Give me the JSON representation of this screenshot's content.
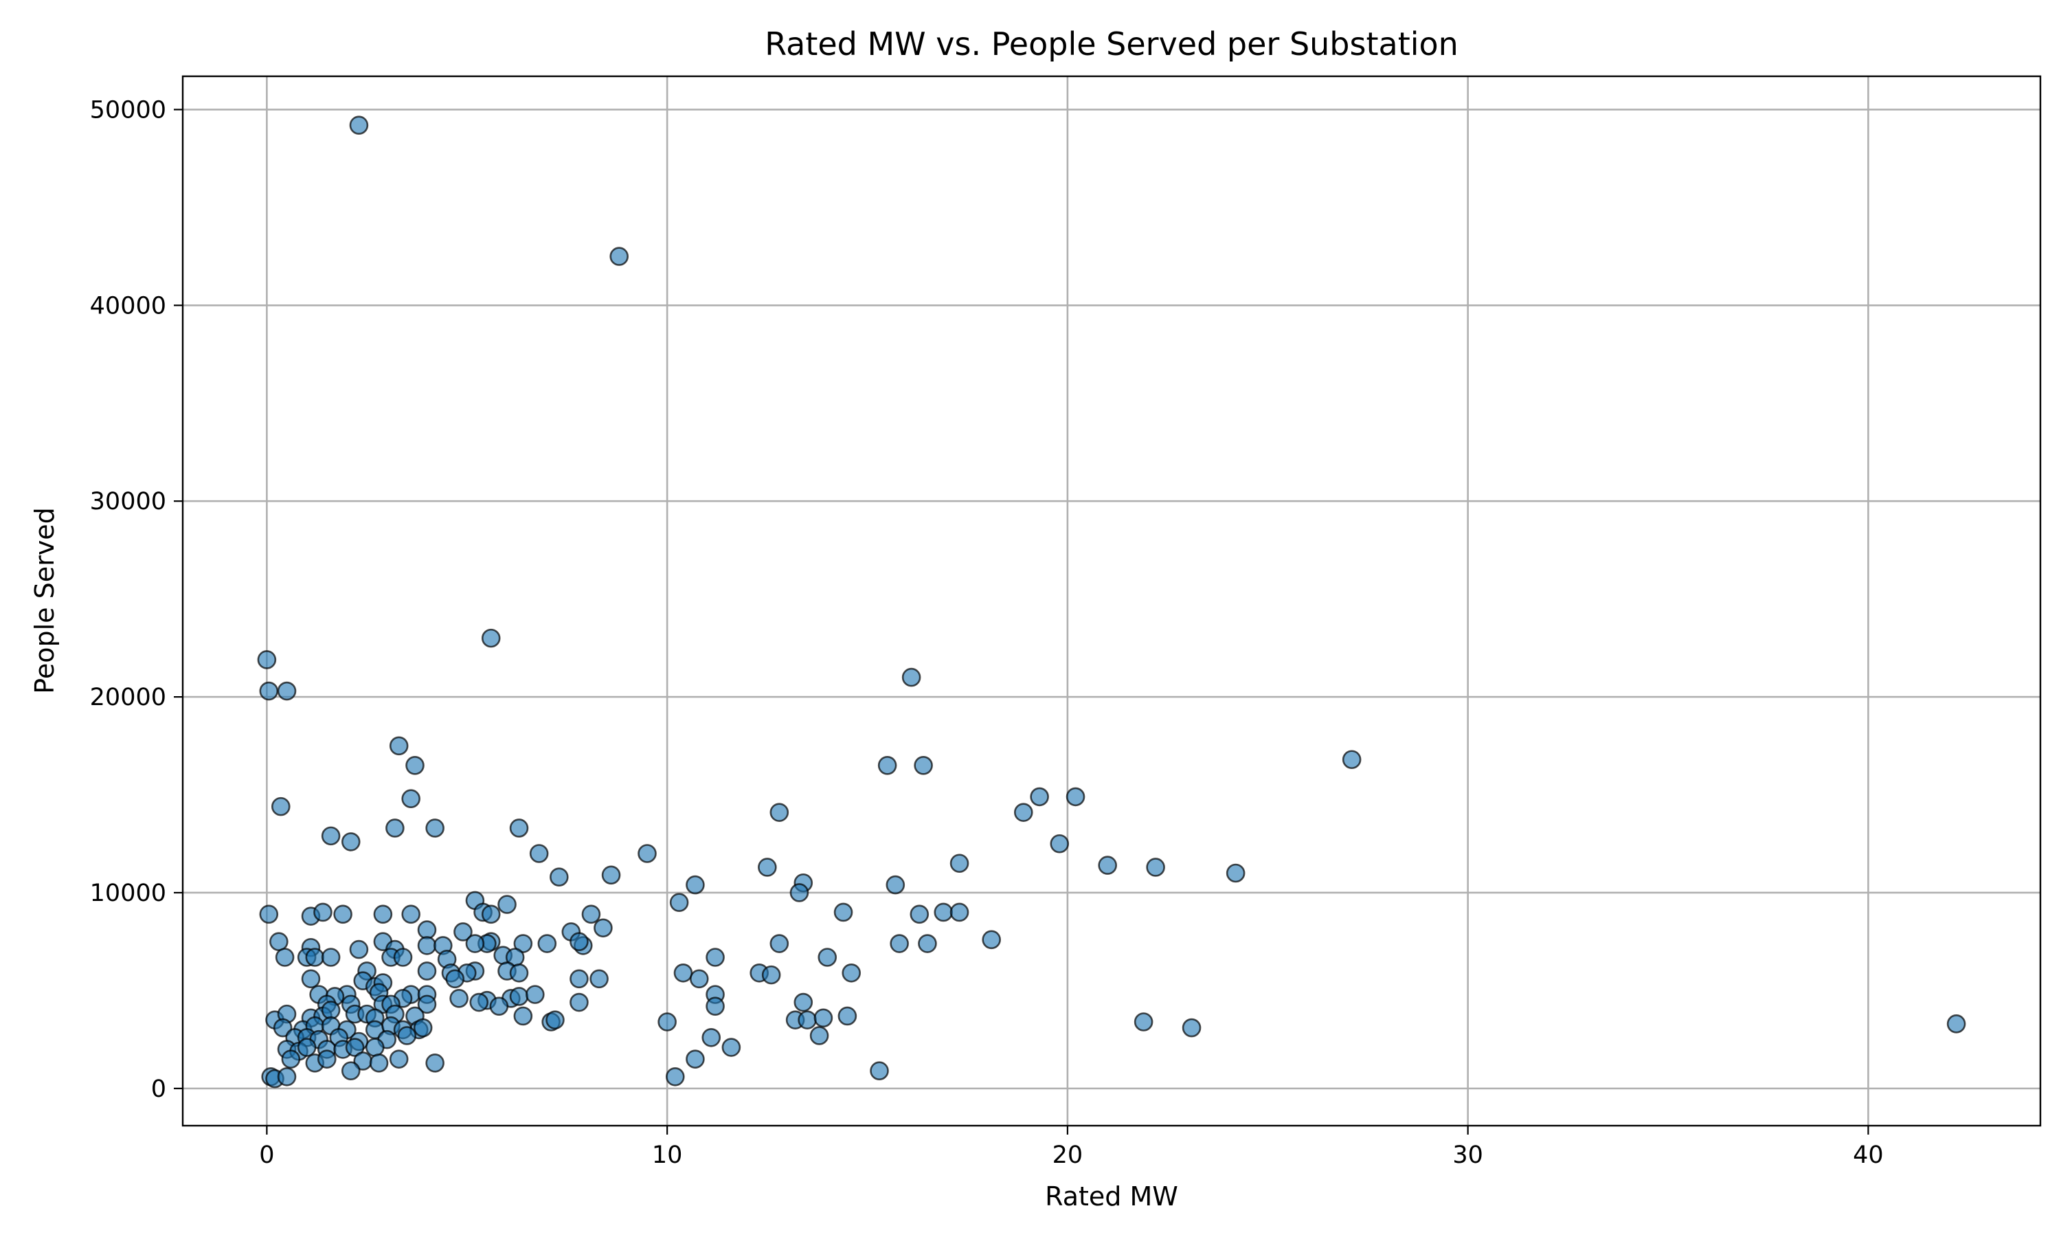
{
  "chart_data": {
    "type": "scatter",
    "title": "Rated MW vs. People Served per Substation",
    "xlabel": "Rated MW",
    "ylabel": "People Served",
    "xlim": [
      -2.1,
      44.3
    ],
    "ylim": [
      -1900,
      51700
    ],
    "xticks": [
      0,
      10,
      20,
      30,
      40
    ],
    "yticks": [
      0,
      10000,
      20000,
      30000,
      40000,
      50000
    ],
    "xtick_labels": [
      "0",
      "10",
      "20",
      "30",
      "40"
    ],
    "ytick_labels": [
      "0",
      "10000",
      "20000",
      "30000",
      "40000",
      "50000"
    ],
    "grid": true,
    "marker_color": "#1f77b4",
    "points": [
      [
        2.3,
        49200
      ],
      [
        8.8,
        42500
      ],
      [
        5.6,
        23000
      ],
      [
        0.0,
        21900
      ],
      [
        0.05,
        20300
      ],
      [
        0.5,
        20300
      ],
      [
        16.1,
        21000
      ],
      [
        27.1,
        16800
      ],
      [
        3.3,
        17500
      ],
      [
        3.7,
        16500
      ],
      [
        15.5,
        16500
      ],
      [
        16.4,
        16500
      ],
      [
        3.6,
        14800
      ],
      [
        0.35,
        14400
      ],
      [
        12.8,
        14100
      ],
      [
        18.9,
        14100
      ],
      [
        19.3,
        14900
      ],
      [
        20.2,
        14900
      ],
      [
        1.6,
        12900
      ],
      [
        2.1,
        12600
      ],
      [
        3.2,
        13300
      ],
      [
        4.2,
        13300
      ],
      [
        6.3,
        13300
      ],
      [
        19.8,
        12500
      ],
      [
        6.8,
        12000
      ],
      [
        9.5,
        12000
      ],
      [
        7.3,
        10800
      ],
      [
        8.6,
        10900
      ],
      [
        10.7,
        10400
      ],
      [
        13.4,
        10500
      ],
      [
        15.7,
        10400
      ],
      [
        12.5,
        11300
      ],
      [
        17.3,
        11500
      ],
      [
        21.0,
        11400
      ],
      [
        22.2,
        11300
      ],
      [
        24.2,
        11000
      ],
      [
        10.3,
        9500
      ],
      [
        13.3,
        10000
      ],
      [
        14.4,
        9000
      ],
      [
        16.9,
        9000
      ],
      [
        17.3,
        9000
      ],
      [
        16.3,
        8900
      ],
      [
        5.2,
        9600
      ],
      [
        6.0,
        9400
      ],
      [
        5.4,
        9000
      ],
      [
        5.6,
        8900
      ],
      [
        0.05,
        8900
      ],
      [
        1.1,
        8800
      ],
      [
        1.4,
        9000
      ],
      [
        1.9,
        8900
      ],
      [
        2.9,
        8900
      ],
      [
        3.6,
        8900
      ],
      [
        8.1,
        8900
      ],
      [
        7.6,
        8000
      ],
      [
        8.4,
        8200
      ],
      [
        4.0,
        8100
      ],
      [
        4.9,
        8000
      ],
      [
        5.6,
        7500
      ],
      [
        5.5,
        7400
      ],
      [
        5.2,
        7400
      ],
      [
        0.3,
        7500
      ],
      [
        1.1,
        7200
      ],
      [
        2.3,
        7100
      ],
      [
        2.9,
        7500
      ],
      [
        3.2,
        7100
      ],
      [
        4.0,
        7300
      ],
      [
        4.4,
        7300
      ],
      [
        6.4,
        7400
      ],
      [
        7.0,
        7400
      ],
      [
        7.9,
        7300
      ],
      [
        7.8,
        7500
      ],
      [
        12.8,
        7400
      ],
      [
        15.8,
        7400
      ],
      [
        16.5,
        7400
      ],
      [
        18.1,
        7600
      ],
      [
        0.45,
        6700
      ],
      [
        1.0,
        6700
      ],
      [
        1.2,
        6700
      ],
      [
        1.6,
        6700
      ],
      [
        3.1,
        6700
      ],
      [
        3.4,
        6700
      ],
      [
        4.5,
        6600
      ],
      [
        5.9,
        6800
      ],
      [
        6.2,
        6700
      ],
      [
        11.2,
        6700
      ],
      [
        14.0,
        6700
      ],
      [
        2.5,
        6000
      ],
      [
        4.0,
        6000
      ],
      [
        4.6,
        5900
      ],
      [
        5.2,
        6000
      ],
      [
        5.0,
        5900
      ],
      [
        6.0,
        6000
      ],
      [
        6.3,
        5900
      ],
      [
        10.4,
        5900
      ],
      [
        12.3,
        5900
      ],
      [
        12.6,
        5800
      ],
      [
        14.6,
        5900
      ],
      [
        1.1,
        5600
      ],
      [
        2.4,
        5500
      ],
      [
        2.7,
        5200
      ],
      [
        2.9,
        5400
      ],
      [
        4.7,
        5600
      ],
      [
        7.8,
        5600
      ],
      [
        8.3,
        5600
      ],
      [
        10.8,
        5600
      ],
      [
        1.3,
        4800
      ],
      [
        2.0,
        4800
      ],
      [
        1.7,
        4700
      ],
      [
        2.8,
        4900
      ],
      [
        3.6,
        4800
      ],
      [
        4.0,
        4800
      ],
      [
        3.4,
        4600
      ],
      [
        4.8,
        4600
      ],
      [
        5.5,
        4500
      ],
      [
        6.1,
        4600
      ],
      [
        6.3,
        4700
      ],
      [
        6.7,
        4800
      ],
      [
        11.2,
        4800
      ],
      [
        1.5,
        4300
      ],
      [
        2.1,
        4300
      ],
      [
        2.9,
        4300
      ],
      [
        3.1,
        4300
      ],
      [
        4.0,
        4300
      ],
      [
        5.3,
        4400
      ],
      [
        5.8,
        4200
      ],
      [
        7.8,
        4400
      ],
      [
        11.2,
        4200
      ],
      [
        13.4,
        4400
      ],
      [
        0.2,
        3500
      ],
      [
        0.5,
        3800
      ],
      [
        1.1,
        3600
      ],
      [
        1.4,
        3700
      ],
      [
        1.6,
        4000
      ],
      [
        2.2,
        3800
      ],
      [
        2.5,
        3800
      ],
      [
        2.7,
        3600
      ],
      [
        3.2,
        3800
      ],
      [
        3.7,
        3700
      ],
      [
        6.4,
        3700
      ],
      [
        7.1,
        3400
      ],
      [
        7.2,
        3500
      ],
      [
        10.0,
        3400
      ],
      [
        13.2,
        3500
      ],
      [
        13.5,
        3500
      ],
      [
        13.9,
        3600
      ],
      [
        14.5,
        3700
      ],
      [
        21.9,
        3400
      ],
      [
        23.1,
        3100
      ],
      [
        42.2,
        3300
      ],
      [
        0.4,
        3100
      ],
      [
        0.9,
        3000
      ],
      [
        1.2,
        3200
      ],
      [
        1.6,
        3200
      ],
      [
        2.0,
        3000
      ],
      [
        2.7,
        3000
      ],
      [
        3.1,
        3200
      ],
      [
        3.4,
        3000
      ],
      [
        3.8,
        3000
      ],
      [
        3.9,
        3100
      ],
      [
        0.7,
        2600
      ],
      [
        1.0,
        2600
      ],
      [
        1.3,
        2500
      ],
      [
        1.8,
        2600
      ],
      [
        2.3,
        2400
      ],
      [
        3.0,
        2500
      ],
      [
        3.5,
        2700
      ],
      [
        11.1,
        2600
      ],
      [
        13.8,
        2700
      ],
      [
        0.5,
        2000
      ],
      [
        0.8,
        1900
      ],
      [
        1.0,
        2100
      ],
      [
        1.5,
        2000
      ],
      [
        1.9,
        2000
      ],
      [
        2.2,
        2100
      ],
      [
        2.7,
        2100
      ],
      [
        11.6,
        2100
      ],
      [
        0.6,
        1500
      ],
      [
        1.2,
        1300
      ],
      [
        1.5,
        1500
      ],
      [
        2.4,
        1400
      ],
      [
        2.8,
        1300
      ],
      [
        3.3,
        1500
      ],
      [
        4.2,
        1300
      ],
      [
        10.7,
        1500
      ],
      [
        0.1,
        600
      ],
      [
        0.2,
        500
      ],
      [
        0.5,
        600
      ],
      [
        2.1,
        900
      ],
      [
        10.2,
        600
      ],
      [
        15.3,
        900
      ]
    ]
  }
}
